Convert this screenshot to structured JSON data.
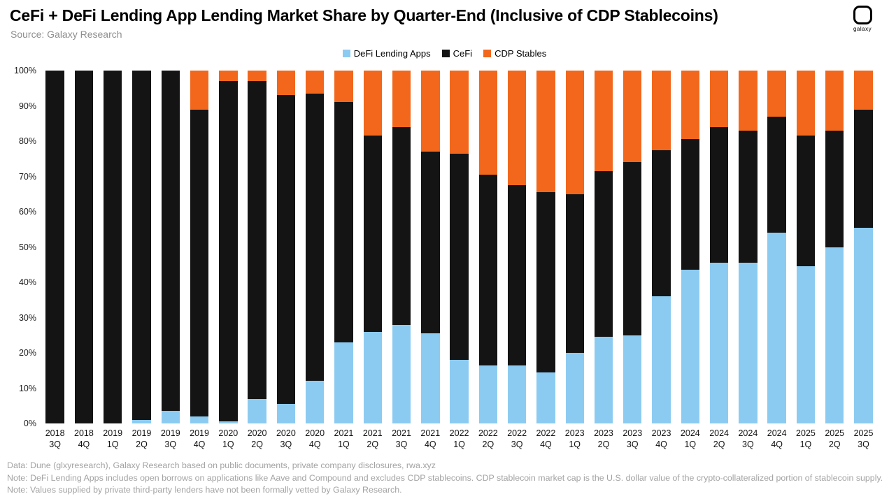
{
  "header": {
    "title": "CeFi + DeFi Lending App Lending Market Share by Quarter-End (Inclusive of CDP Stablecoins)",
    "source": "Source: Galaxy Research"
  },
  "logo": {
    "label": "galaxy"
  },
  "colors": {
    "defi": "#8CCBF1",
    "cefi": "#141414",
    "cdp": "#F2671C"
  },
  "chart_data": {
    "type": "bar",
    "stacked": true,
    "title": "CeFi + DeFi Lending App Lending Market Share by Quarter-End (Inclusive of CDP Stablecoins)",
    "xlabel": "",
    "ylabel": "",
    "ylim": [
      0,
      100
    ],
    "y_tick_step": 10,
    "y_tick_suffix": "%",
    "grid": false,
    "legend_position": "top-center",
    "categories": [
      "2018 3Q",
      "2018 4Q",
      "2019 1Q",
      "2019 2Q",
      "2019 3Q",
      "2019 4Q",
      "2020 1Q",
      "2020 2Q",
      "2020 3Q",
      "2020 4Q",
      "2021 1Q",
      "2021 2Q",
      "2021 3Q",
      "2021 4Q",
      "2022 1Q",
      "2022 2Q",
      "2022 3Q",
      "2022 4Q",
      "2023 1Q",
      "2023 2Q",
      "2023 3Q",
      "2023 4Q",
      "2024 1Q",
      "2024 2Q",
      "2024 3Q",
      "2024 4Q",
      "2025 1Q",
      "2025 2Q",
      "2025 3Q"
    ],
    "series": [
      {
        "name": "DeFi Lending Apps",
        "color": "#8CCBF1",
        "values": [
          0,
          0,
          0,
          1,
          3.5,
          2,
          0.5,
          7,
          5.5,
          12,
          23,
          26,
          28,
          25.5,
          18,
          16.5,
          16.5,
          14.5,
          20,
          24.5,
          25,
          36,
          43.5,
          45.5,
          45.5,
          54,
          44.5,
          50,
          55.5
        ]
      },
      {
        "name": "CeFi",
        "color": "#141414",
        "values": [
          100,
          100,
          100,
          99,
          96.5,
          87,
          96.5,
          90,
          87.5,
          81.5,
          68,
          55.5,
          56,
          51.5,
          58.5,
          54,
          51,
          51,
          45,
          47,
          49,
          41.5,
          37,
          38.5,
          37.5,
          33,
          37,
          33,
          33.5
        ]
      },
      {
        "name": "CDP Stables",
        "color": "#F2671C",
        "values": [
          0,
          0,
          0,
          0,
          0,
          11,
          3,
          3,
          7,
          6.5,
          9,
          18.5,
          16,
          23,
          23.5,
          29.5,
          32.5,
          34.5,
          35,
          28.5,
          26,
          22.5,
          19.5,
          16,
          17,
          13,
          18.5,
          17,
          11
        ]
      }
    ]
  },
  "footer": {
    "lines": [
      "Data: Dune (glxyresearch), Galaxy Research based on public documents, private company disclosures, rwa.xyz",
      "Note: DeFi Lending Apps includes open borrows on applications like Aave and Compound and excludes CDP stablecoins. CDP stablecoin market cap is the U.S. dollar value of the crypto-collateralized portion of stablecoin supply.",
      "Note: Values supplied by private third-party lenders have not been formally vetted by Galaxy Research."
    ]
  }
}
